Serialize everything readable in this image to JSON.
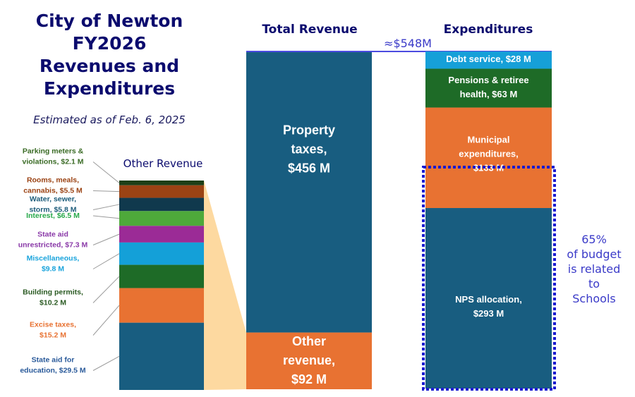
{
  "header": {
    "title_lines": [
      "City of Newton",
      "FY2026",
      "Revenues and",
      "Expenditures"
    ],
    "subtitle": "Estimated as of Feb. 6, 2025"
  },
  "columns": {
    "revenue_heading": "Total Revenue",
    "expenditure_heading": "Expenditures",
    "other_heading": "Other Revenue"
  },
  "total_label": "≈$548M",
  "schools_note": [
    "65%",
    "of budget",
    "is related",
    "to",
    "Schools"
  ],
  "chart_data": [
    {
      "type": "bar",
      "stacked": true,
      "title": "Total Revenue",
      "units": "$M",
      "total": 548,
      "series": [
        {
          "name": "Property taxes",
          "label_lines": [
            "Property",
            "taxes,",
            "$456 M"
          ],
          "value": 456,
          "color": "#185d80"
        },
        {
          "name": "Other revenue",
          "label_lines": [
            "Other",
            "revenue,",
            "$92 M"
          ],
          "value": 92,
          "color": "#e87232"
        }
      ]
    },
    {
      "type": "bar",
      "stacked": true,
      "title": "Expenditures",
      "units": "$M",
      "series": [
        {
          "name": "Debt service",
          "label_lines": [
            "Debt service,  $28 M"
          ],
          "value": 28,
          "color": "#16a0d8"
        },
        {
          "name": "Pensions & retiree health",
          "label_lines": [
            "Pensions & retiree",
            "health,  $63 M"
          ],
          "value": 63,
          "color": "#1e6b27"
        },
        {
          "name": "Municipal expenditures",
          "label_lines": [
            "Municipal",
            "expenditures,",
            "$163 M"
          ],
          "value": 163,
          "color": "#e87232"
        },
        {
          "name": "NPS allocation",
          "label_lines": [
            "NPS allocation,",
            "$293  M"
          ],
          "value": 293,
          "color": "#185d80"
        }
      ],
      "highlight": {
        "covers": [
          "NPS allocation",
          "part of Municipal expenditures"
        ],
        "share_percent": 65,
        "color": "#1a1ad0"
      }
    },
    {
      "type": "bar",
      "stacked": true,
      "title": "Other Revenue",
      "units": "$M",
      "total": 92,
      "series": [
        {
          "name": "Parking meters & violations",
          "label_lines": [
            "Parking meters &",
            "violations,  $2.1 M"
          ],
          "value": 2.1,
          "color": "#1c3f17",
          "text_color": "#3a6b25"
        },
        {
          "name": "Rooms, meals, cannabis",
          "label_lines": [
            "Rooms, meals,",
            "cannabis,  $5.5 M"
          ],
          "value": 5.5,
          "color": "#9b4314",
          "text_color": "#9b4314"
        },
        {
          "name": "Water, sewer, storm",
          "label_lines": [
            "Water, sewer,",
            "storm,  $5.8 M"
          ],
          "value": 5.8,
          "color": "#10394d",
          "text_color": "#1d5c7a"
        },
        {
          "name": "Interest",
          "label_lines": [
            "Interest,  $6.5 M"
          ],
          "value": 6.5,
          "color": "#4ea93a",
          "text_color": "#27a84a"
        },
        {
          "name": "State aid unrestricted",
          "label_lines": [
            "State aid",
            "unrestricted,  $7.3 M"
          ],
          "value": 7.3,
          "color": "#9b2b96",
          "text_color": "#8a3aa8"
        },
        {
          "name": "Miscellaneous",
          "label_lines": [
            "Miscellaneous,",
            "$9.8 M"
          ],
          "value": 9.8,
          "color": "#14a0d8",
          "text_color": "#1aa4dc"
        },
        {
          "name": "Building permits",
          "label_lines": [
            "Building permits,",
            "$10.2 M"
          ],
          "value": 10.2,
          "color": "#1e6b27",
          "text_color": "#2a5a22"
        },
        {
          "name": "Excise taxes",
          "label_lines": [
            "Excise taxes,",
            "$15.2 M"
          ],
          "value": 15.2,
          "color": "#e87232",
          "text_color": "#e87232"
        },
        {
          "name": "State aid for education",
          "label_lines": [
            "State aid for",
            "education,  $29.5 M"
          ],
          "value": 29.5,
          "color": "#185d80",
          "text_color": "#2a5a9a"
        }
      ]
    }
  ]
}
